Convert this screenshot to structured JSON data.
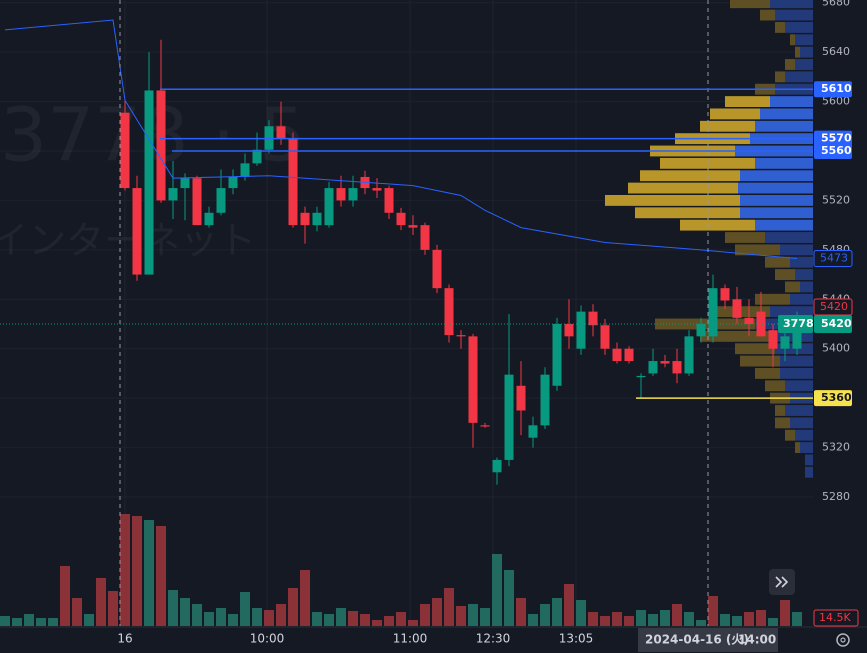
{
  "chart_data": {
    "type": "candlestick",
    "symbol": "3778",
    "watermark": "3778 · 5",
    "watermark_name": "インターネット",
    "ylim": [
      5175.6,
      5682.2
    ],
    "yticks": [
      5280,
      5320,
      5360,
      5400,
      5440,
      5480,
      5520,
      5560,
      5600,
      5640,
      5680
    ],
    "up_color": "#089981",
    "down_color": "#f23645",
    "candles": [
      [
        5591,
        5601,
        5528,
        5530
      ],
      [
        5530,
        5540,
        5455,
        5460
      ],
      [
        5460,
        5640,
        5460,
        5609
      ],
      [
        5609,
        5650,
        5518,
        5520
      ],
      [
        5520,
        5552,
        5505,
        5530
      ],
      [
        5530,
        5542,
        5504,
        5538
      ],
      [
        5538,
        5540,
        5500,
        5500
      ],
      [
        5500,
        5515,
        5498,
        5510
      ],
      [
        5510,
        5545,
        5508,
        5530
      ],
      [
        5530,
        5545,
        5525,
        5539
      ],
      [
        5539,
        5558,
        5536,
        5550
      ],
      [
        5550,
        5575,
        5548,
        5561
      ],
      [
        5561,
        5585,
        5558,
        5580
      ],
      [
        5580,
        5600,
        5565,
        5570
      ],
      [
        5570,
        5575,
        5498,
        5500
      ],
      [
        5510,
        5515,
        5485,
        5500
      ],
      [
        5500,
        5515,
        5495,
        5510
      ],
      [
        5500,
        5535,
        5498,
        5530
      ],
      [
        5530,
        5540,
        5515,
        5520
      ],
      [
        5520,
        5540,
        5515,
        5530
      ],
      [
        5539,
        5544,
        5525,
        5530
      ],
      [
        5530,
        5538,
        5522,
        5528
      ],
      [
        5530,
        5532,
        5505,
        5510
      ],
      [
        5510,
        5514,
        5496,
        5500
      ],
      [
        5500,
        5508,
        5492,
        5498
      ],
      [
        5500,
        5502,
        5476,
        5480
      ],
      [
        5480,
        5484,
        5445,
        5449
      ],
      [
        5449,
        5452,
        5405,
        5411
      ],
      [
        5411,
        5415,
        5400,
        5410
      ],
      [
        5410,
        5412,
        5320,
        5340
      ],
      [
        5338,
        5340,
        5336,
        5337
      ],
      [
        5300,
        5312,
        5290,
        5310
      ],
      [
        5310,
        5428,
        5305,
        5379
      ],
      [
        5370,
        5390,
        5330,
        5350
      ],
      [
        5328,
        5345,
        5320,
        5338
      ],
      [
        5338,
        5385,
        5335,
        5379
      ],
      [
        5370,
        5425,
        5366,
        5420
      ],
      [
        5420,
        5440,
        5400,
        5410
      ],
      [
        5400,
        5435,
        5395,
        5430
      ],
      [
        5430,
        5436,
        5410,
        5419
      ],
      [
        5419,
        5424,
        5395,
        5400
      ],
      [
        5400,
        5405,
        5388,
        5390
      ],
      [
        5400,
        5402,
        5388,
        5390
      ],
      [
        5377,
        5380,
        5360,
        5378
      ],
      [
        5380,
        5400,
        5378,
        5390
      ],
      [
        5390,
        5395,
        5385,
        5388
      ],
      [
        5390,
        5400,
        5372,
        5380
      ],
      [
        5380,
        5415,
        5378,
        5410
      ],
      [
        5410,
        5425,
        5405,
        5420
      ],
      [
        5410,
        5460,
        5405,
        5449
      ],
      [
        5449,
        5452,
        5432,
        5439
      ],
      [
        5440,
        5450,
        5420,
        5425
      ],
      [
        5425,
        5440,
        5410,
        5420
      ],
      [
        5430,
        5446,
        5410,
        5410
      ],
      [
        5415,
        5420,
        5385,
        5400
      ],
      [
        5400,
        5415,
        5390,
        5410
      ],
      [
        5400,
        5430,
        5395,
        5420
      ]
    ],
    "volume": {
      "values": [
        10,
        8,
        12,
        8,
        8,
        60,
        28,
        12,
        48,
        35,
        112,
        110,
        106,
        100,
        36,
        28,
        22,
        14,
        18,
        12,
        34,
        18,
        16,
        22,
        38,
        56,
        14,
        12,
        18,
        15,
        12,
        6,
        10,
        14,
        6,
        22,
        28,
        38,
        20,
        22,
        18,
        72,
        56,
        28,
        12,
        22,
        28,
        42,
        26,
        14,
        10,
        14,
        10,
        16,
        12,
        16,
        22,
        14,
        6,
        30,
        12,
        10,
        14,
        16,
        8,
        26,
        14
      ],
      "direction": [
        "up",
        "up",
        "up",
        "up",
        "up",
        "down",
        "down",
        "up",
        "down",
        "down",
        "down",
        "down",
        "up",
        "down",
        "up",
        "up",
        "up",
        "up",
        "up",
        "up",
        "up",
        "up",
        "down",
        "down",
        "down",
        "down",
        "up",
        "up",
        "up",
        "down",
        "down",
        "down",
        "down",
        "down",
        "down",
        "down",
        "down",
        "down",
        "down",
        "up",
        "up",
        "up",
        "up",
        "down",
        "up",
        "up",
        "up",
        "down",
        "up",
        "down",
        "down",
        "down",
        "down",
        "up",
        "up",
        "up",
        "down",
        "up",
        "up",
        "down",
        "up",
        "up",
        "down",
        "down",
        "up",
        "down",
        "up"
      ],
      "last_label": "14.5K"
    },
    "ma": {
      "color": "#2962ff",
      "x": [
        -10,
        -1,
        0,
        4,
        12,
        24,
        28,
        30,
        33,
        40,
        48,
        56
      ],
      "values": [
        5658,
        5666,
        5601,
        5538,
        5540,
        5532,
        5524,
        5512,
        5498,
        5486,
        5480,
        5473
      ]
    },
    "profile": {
      "prices": [
        5680,
        5670,
        5660,
        5650,
        5640,
        5630,
        5620,
        5610,
        5600,
        5590,
        5580,
        5570,
        5560,
        5550,
        5540,
        5530,
        5520,
        5510,
        5500,
        5490,
        5480,
        5470,
        5460,
        5450,
        5440,
        5430,
        5420,
        5410,
        5400,
        5390,
        5380,
        5370,
        5360,
        5350,
        5340,
        5330,
        5320,
        5310,
        5300
      ],
      "up": [
        43,
        38,
        28,
        18,
        13,
        18,
        28,
        38,
        43,
        53,
        58,
        63,
        78,
        58,
        73,
        75,
        73,
        73,
        58,
        48,
        33,
        23,
        18,
        13,
        23,
        43,
        58,
        43,
        38,
        33,
        33,
        28,
        23,
        28,
        23,
        18,
        13,
        8,
        8
      ],
      "down": [
        40,
        15,
        10,
        5,
        5,
        10,
        10,
        20,
        45,
        50,
        55,
        75,
        85,
        95,
        100,
        110,
        135,
        105,
        75,
        40,
        45,
        25,
        20,
        15,
        35,
        60,
        100,
        70,
        40,
        40,
        25,
        20,
        20,
        10,
        15,
        10,
        5,
        0,
        0
      ],
      "value_area": [
        5500,
        5530
      ]
    },
    "price_lines": [
      {
        "value": 5610,
        "color": "#2962ff"
      },
      {
        "value": 5570,
        "color": "#2962ff"
      },
      {
        "value": 5560,
        "color": "#2962ff"
      },
      {
        "value": 5360,
        "color": "#f7e14c"
      }
    ],
    "last_price": 5420,
    "alert_label": "5420",
    "time_labels": [
      "16",
      "10:00",
      "11:00",
      "12:30",
      "13:05"
    ],
    "crosshair_date": "2024-04-16 (火)",
    "crosshair_time": "14:00"
  }
}
